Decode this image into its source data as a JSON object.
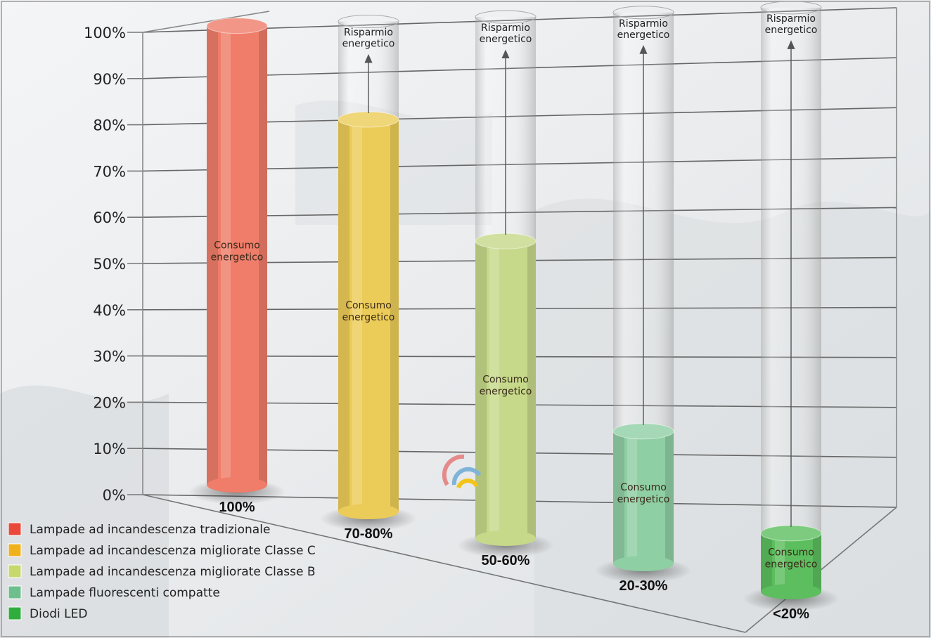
{
  "chart_data": {
    "type": "bar",
    "y_ticks": [
      "0%",
      "10%",
      "20%",
      "30%",
      "40%",
      "50%",
      "60%",
      "70%",
      "80%",
      "90%",
      "100%"
    ],
    "ylim": [
      0,
      100
    ],
    "grid": true,
    "bar_text": "Consumo energetico",
    "saving_text": "Risparmio energetico",
    "categories": [
      "100%",
      "70-80%",
      "50-60%",
      "20-30%",
      "<20%"
    ],
    "values": [
      100,
      80,
      57,
      24,
      10
    ],
    "colors": [
      "#ef7d6a",
      "#eccc58",
      "#c6d98a",
      "#8fcfa4",
      "#5cbe5e"
    ],
    "legend": {
      "position": "bottom-left",
      "items": [
        {
          "label": "Lampade ad incandescenza tradizionale",
          "color": "#e8493a"
        },
        {
          "label": "Lampade ad incandescenza migliorate Classe C",
          "color": "#f0b21c"
        },
        {
          "label": "Lampade ad incandescenza migliorate Classe B",
          "color": "#c7d86e"
        },
        {
          "label": "Lampade fluorescenti compatte",
          "color": "#6fbf8e"
        },
        {
          "label": "Diodi LED",
          "color": "#2fae3e"
        }
      ]
    }
  }
}
